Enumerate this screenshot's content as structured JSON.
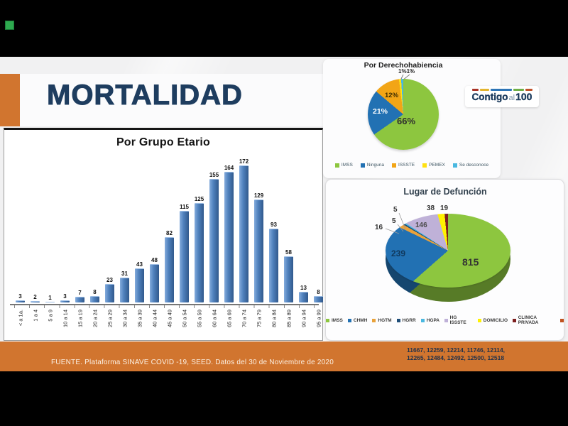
{
  "slide": {
    "title": "MORTALIDAD",
    "source_note": "FUENTE. Plataforma SINAVE COVID -19, SEED. Datos del 30 de Noviembre de 2020",
    "footer_numbers_line1": "11667, 12259, 12214, 11746, 12114,",
    "footer_numbers_line2": "12265, 12484, 12492, 12500, 12518",
    "accent_orange": "#D1752F",
    "title_navy": "#1E3D5F"
  },
  "logo": {
    "word1": "Contigo",
    "word2": "al",
    "word3": "100"
  },
  "chart_data": [
    {
      "type": "bar",
      "title": "Por Grupo Etario",
      "categories": [
        "< a 1a.",
        "1 a 4",
        "5 a 9",
        "10 a 14",
        "15 a 19",
        "20 a 24",
        "25 a 29",
        "30 a 34",
        "35 a 39",
        "40 a 44",
        "45 a 49",
        "50 a 54",
        "55 a 59",
        "60 a 64",
        "65 a 69",
        "70 a 74",
        "75 a 79",
        "80 a 84",
        "85 a 89",
        "90 a 94",
        "95 a 99"
      ],
      "values": [
        3,
        2,
        1,
        3,
        7,
        8,
        23,
        31,
        43,
        48,
        82,
        115,
        125,
        155,
        164,
        172,
        129,
        93,
        58,
        13,
        8
      ],
      "bar_color": "#4F81BD",
      "ylim": [
        0,
        180
      ],
      "data_labels": true,
      "grid": false
    },
    {
      "type": "pie",
      "title": "Por Derechohabiencia",
      "labels": [
        "IMSS",
        "Ninguna",
        "ISSSTE",
        "PEMEX",
        "Se desconoce"
      ],
      "values": [
        66,
        21,
        12,
        1,
        1
      ],
      "value_labels": [
        "66%",
        "21%",
        "12%",
        "1%",
        "1%"
      ],
      "callout_label": "1%1%",
      "colors": [
        "#8DC63F",
        "#2271B3",
        "#F2A516",
        "#FFE011",
        "#4AB8E0"
      ],
      "legend_position": "bottom"
    },
    {
      "type": "pie",
      "style": "3d",
      "title": "Lugar de Defunción",
      "labels": [
        "IMSS",
        "CHMH",
        "HGTM",
        "HGRR",
        "HGPA",
        "HG ISSSTE",
        "DOMICILIO",
        "CLINICA PRIVADA"
      ],
      "values": [
        815,
        239,
        16,
        5,
        5,
        146,
        38,
        19
      ],
      "colors": [
        "#8DC63F",
        "#2271B3",
        "#E9A23B",
        "#1F4E79",
        "#4AB8E0",
        "#BFB1D8",
        "#FFF200",
        "#7D1F1F"
      ],
      "extra_marker_color": "#C0531F",
      "legend_position": "bottom"
    }
  ]
}
